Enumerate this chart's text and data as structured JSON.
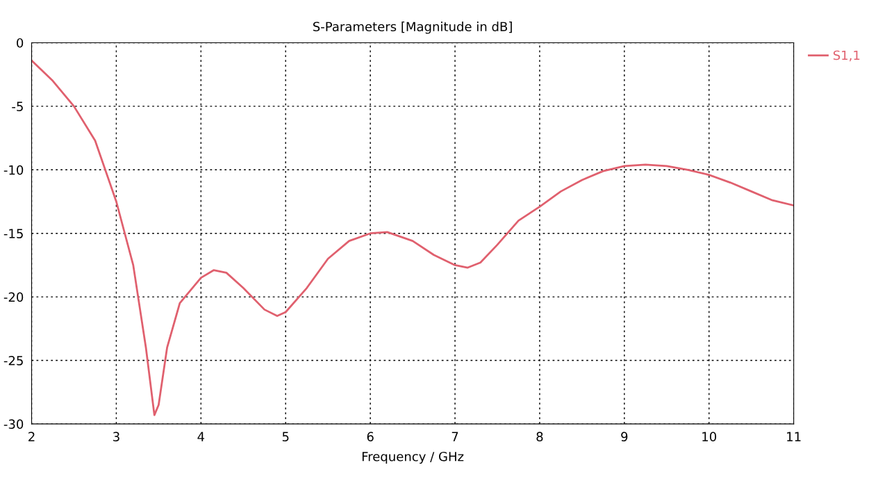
{
  "chart_data": {
    "type": "line",
    "title": "S-Parameters [Magnitude in dB]",
    "xlabel": "Frequency / GHz",
    "xlim": [
      2,
      11
    ],
    "xticks": [
      2,
      3,
      4,
      5,
      6,
      7,
      8,
      9,
      10,
      11
    ],
    "ylim": [
      -30,
      0
    ],
    "yticks": [
      -30,
      -25,
      -20,
      -15,
      -10,
      -5,
      0
    ],
    "grid": true,
    "legend": "top right",
    "marker": "none",
    "line_style": "solid",
    "series": [
      {
        "name": "S1,1",
        "color": "#e0606e",
        "x": [
          2.0,
          2.25,
          2.5,
          2.75,
          3.0,
          3.2,
          3.35,
          3.45,
          3.5,
          3.6,
          3.75,
          4.0,
          4.15,
          4.3,
          4.5,
          4.75,
          4.9,
          5.0,
          5.25,
          5.5,
          5.75,
          6.0,
          6.2,
          6.5,
          6.75,
          7.0,
          7.15,
          7.3,
          7.5,
          7.75,
          8.0,
          8.25,
          8.5,
          8.75,
          9.0,
          9.25,
          9.5,
          9.75,
          10.0,
          10.25,
          10.5,
          10.75,
          11.0
        ],
        "values": [
          -1.4,
          -3.0,
          -5.0,
          -7.7,
          -12.5,
          -17.5,
          -24.0,
          -29.3,
          -28.5,
          -24.0,
          -20.5,
          -18.5,
          -17.9,
          -18.1,
          -19.3,
          -21.0,
          -21.5,
          -21.2,
          -19.3,
          -17.0,
          -15.6,
          -15.0,
          -14.9,
          -15.6,
          -16.7,
          -17.5,
          -17.7,
          -17.3,
          -15.9,
          -14.0,
          -12.9,
          -11.7,
          -10.8,
          -10.1,
          -9.7,
          -9.6,
          -9.7,
          -10.0,
          -10.4,
          -11.0,
          -11.7,
          -12.4,
          -12.8
        ]
      }
    ]
  }
}
